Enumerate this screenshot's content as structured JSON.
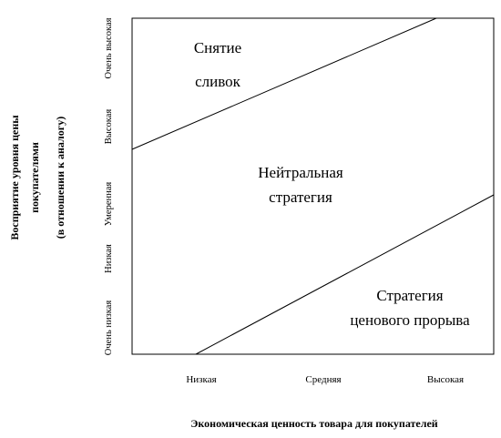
{
  "diagram": {
    "x_axis": {
      "title": "Экономическая ценность товара для покупателей",
      "ticks": [
        "Низкая",
        "Средняя",
        "Высокая"
      ]
    },
    "y_axis": {
      "title_lines": [
        "Восприятие уровня цены",
        "покупателями",
        "(в отношении к аналогу)"
      ],
      "ticks": [
        "Очень низкая",
        "Низкая",
        "Умеренная",
        "Высокая",
        "Очень высокая"
      ]
    },
    "zones": {
      "skimming": [
        "Снятие",
        "сливок"
      ],
      "neutral": [
        "Нейтральная",
        "стратегия"
      ],
      "penetration": [
        "Стратегия",
        "ценового прорыва"
      ]
    }
  }
}
